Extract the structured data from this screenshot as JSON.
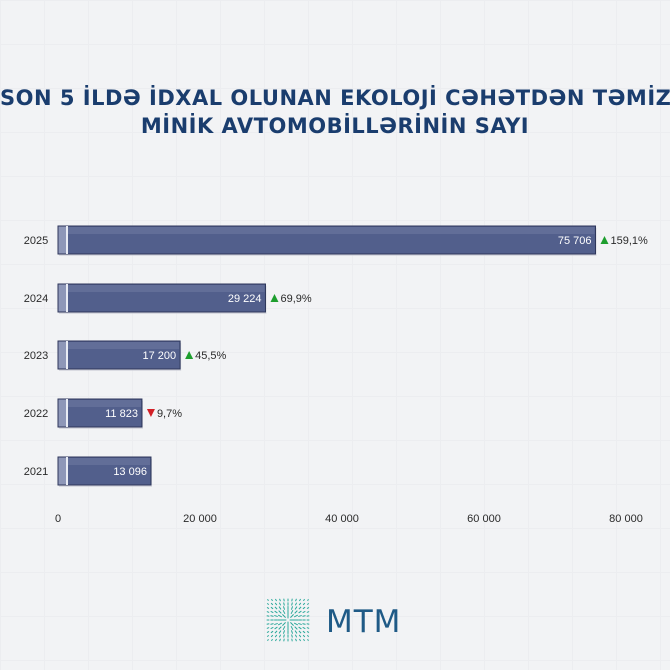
{
  "title_lines": [
    "SON 5 İLDƏ İDXAL OLUNAN EKOLOJİ CƏHƏTDƏN TƏMİZ",
    "MİNİK AVTOMOBİLLƏRİNİN SAYI"
  ],
  "brand": {
    "name": "MTM",
    "color": "#1f5a86",
    "accent": "#2aa89a"
  },
  "colors": {
    "bar": "#525f8c",
    "bar_border": "#2d365a",
    "up": "#1e9e2e",
    "down": "#d21f26",
    "title": "#1a3d6e"
  },
  "chart_data": {
    "type": "bar",
    "orientation": "horizontal",
    "categories": [
      "2025",
      "2024",
      "2023",
      "2022",
      "2021"
    ],
    "values": [
      75706,
      29224,
      17200,
      11823,
      13096
    ],
    "value_labels": [
      "75 706",
      "29 224",
      "17 200",
      "11 823",
      "13 096"
    ],
    "changes": [
      {
        "direction": "up",
        "label": "159,1%"
      },
      {
        "direction": "up",
        "label": "69,9%"
      },
      {
        "direction": "up",
        "label": "45,5%"
      },
      {
        "direction": "down",
        "label": "9,7%"
      },
      null
    ],
    "xlim": [
      0,
      80000
    ],
    "xticks": [
      0,
      20000,
      40000,
      60000,
      80000
    ],
    "xtick_labels": [
      "0",
      "20 000",
      "40 000",
      "60 000",
      "80 000"
    ],
    "grid": false
  }
}
